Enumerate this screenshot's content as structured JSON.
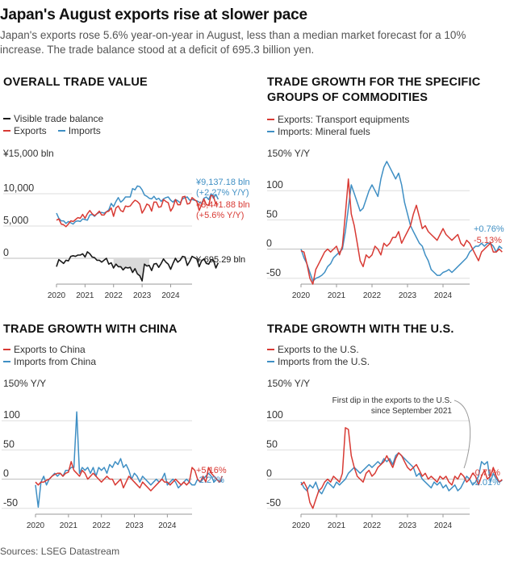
{
  "header": {
    "title": "Japan's August exports rise at slower pace",
    "subtitle": "Japan's exports rose 5.6% year-on-year in August, less than a median market forecast for a 10% increase. The trade balance stood at a deficit of 695.3 billion yen."
  },
  "source": "Sources: LSEG Datastream",
  "colors": {
    "exports": "#d83a34",
    "imports": "#3f8fc4",
    "balance": "#1a1a1a",
    "deficit_fill": "#d9d9d9",
    "grid": "#dedede"
  },
  "chart_data": [
    {
      "id": "overall",
      "type": "line",
      "title": "OVERALL TRADE VALUE",
      "unit": "¥15,000 bln",
      "legend": [
        "Visible trade balance",
        "Exports",
        "Imports"
      ],
      "x_ticks": [
        "2020",
        "2021",
        "2022",
        "2023",
        "2024"
      ],
      "y_ticks": [
        "10,000",
        "5,000",
        "0"
      ],
      "xlim": [
        2020.0,
        2024.75
      ],
      "ylim": [
        -4000,
        15000
      ],
      "y_tick_values": [
        10000,
        5000,
        0
      ],
      "series": [
        {
          "name": "Exports",
          "role": "exports",
          "x_start": 2020.0,
          "x_step": 0.08333,
          "values": [
            5900,
            6100,
            5300,
            5200,
            4900,
            5300,
            5800,
            5700,
            6000,
            6300,
            6200,
            6800,
            6200,
            6900,
            7400,
            6900,
            6600,
            6900,
            7300,
            6700,
            6700,
            7200,
            7300,
            7800,
            6500,
            7800,
            8100,
            7400,
            7200,
            8100,
            8000,
            8100,
            8600,
            9000,
            8800,
            8400,
            7000,
            7600,
            8400,
            8200,
            7300,
            8700,
            8700,
            7900,
            8000,
            9100,
            8800,
            8600,
            7300,
            7900,
            9100,
            8300,
            8300,
            9500,
            9600,
            8400,
            8500,
            9400,
            9100,
            8800,
            7400,
            8300,
            9200,
            8300,
            8200,
            9800,
            9600,
            8400,
            8400
          ]
        },
        {
          "name": "Imports",
          "role": "imports",
          "x_start": 2020.0,
          "x_step": 0.08333,
          "values": [
            7000,
            6200,
            5800,
            5800,
            5400,
            5700,
            5500,
            5300,
            5700,
            5800,
            5700,
            6100,
            6000,
            5900,
            6700,
            6800,
            6500,
            6900,
            7100,
            7100,
            7000,
            7200,
            7500,
            8500,
            8000,
            8800,
            9400,
            8700,
            9000,
            9500,
            9500,
            9500,
            10800,
            10600,
            11200,
            11100,
            10600,
            9800,
            9600,
            9300,
            9200,
            9600,
            9100,
            9300,
            8800,
            9200,
            9400,
            9500,
            9000,
            8700,
            9100,
            8900,
            8600,
            9200,
            9400,
            9500,
            9000,
            9100,
            9000,
            8900,
            8700,
            8500,
            9300,
            9500,
            9100,
            10000,
            9300,
            9900,
            9137
          ]
        },
        {
          "name": "Visible trade balance",
          "role": "balance",
          "x_start": 2020.0,
          "x_step": 0.08333,
          "values": [
            -1300,
            -200,
            -500,
            -800,
            -300,
            -400,
            300,
            400,
            300,
            500,
            500,
            700,
            200,
            1000,
            700,
            200,
            100,
            -300,
            -300,
            -600,
            -300,
            0,
            -900,
            -700,
            -1500,
            -900,
            -1300,
            -1300,
            -1800,
            -1400,
            -1500,
            -1400,
            -2200,
            -1600,
            -2400,
            -2700,
            -3500,
            -900,
            -1200,
            -1100,
            -1900,
            -900,
            -800,
            -1400,
            -800,
            -100,
            -600,
            -900,
            -1700,
            -800,
            0,
            -600,
            -300,
            300,
            200,
            -1100,
            -500,
            300,
            100,
            -100,
            -1300,
            -400,
            -100,
            -800,
            -900,
            -200,
            -300,
            -1500,
            -695
          ]
        },
        {
          "name": "Deficit area (2022-2023)",
          "role": "deficit-band"
        }
      ],
      "end_labels": [
        {
          "text": "¥9,137.18 bln",
          "role": "imports"
        },
        {
          "text": "(+2.27% Y/Y)",
          "role": "imports"
        },
        {
          "text": "¥8,441.88 bln",
          "role": "exports"
        },
        {
          "text": "(+5.6% Y/Y)",
          "role": "exports"
        },
        {
          "text": "¥-695.29 bln",
          "role": "balance"
        }
      ]
    },
    {
      "id": "commodities",
      "type": "line",
      "title": [
        "TRADE GROWTH FOR THE SPECIFIC",
        "GROUPS OF COMMODITIES"
      ],
      "unit": "150% Y/Y",
      "legend": [
        "Exports: Transport equipments",
        "Imports: Mineral fuels"
      ],
      "x_ticks": [
        "2020",
        "2021",
        "2022",
        "2023",
        "2024"
      ],
      "y_ticks": [
        "100",
        "50",
        "0",
        "-50"
      ],
      "xlim": [
        2020.0,
        2024.75
      ],
      "ylim": [
        -60,
        150
      ],
      "y_tick_values": [
        100,
        50,
        0,
        -50
      ],
      "series": [
        {
          "name": "Exports: Transport equipments",
          "role": "exports",
          "x_start": 2020.0,
          "x_step": 0.08333,
          "values": [
            -3,
            -5,
            -25,
            -50,
            -60,
            -35,
            -25,
            -15,
            -5,
            0,
            -5,
            0,
            5,
            -10,
            5,
            60,
            120,
            60,
            40,
            10,
            -20,
            -30,
            -10,
            -15,
            -10,
            5,
            0,
            -10,
            10,
            5,
            10,
            20,
            20,
            30,
            10,
            20,
            30,
            40,
            60,
            75,
            55,
            35,
            40,
            30,
            25,
            20,
            15,
            25,
            35,
            25,
            20,
            15,
            20,
            25,
            10,
            5,
            15,
            10,
            0,
            -10,
            -20,
            -5,
            0,
            5,
            10,
            -5,
            -5,
            0,
            -5
          ]
        },
        {
          "name": "Imports: Mineral fuels",
          "role": "imports",
          "x_start": 2020.0,
          "x_step": 0.08333,
          "values": [
            0,
            -15,
            -25,
            -40,
            -55,
            -50,
            -48,
            -45,
            -40,
            -30,
            -25,
            -15,
            -10,
            -5,
            0,
            30,
            70,
            110,
            95,
            80,
            65,
            70,
            85,
            100,
            110,
            100,
            90,
            120,
            140,
            150,
            140,
            130,
            120,
            130,
            110,
            80,
            60,
            40,
            30,
            20,
            10,
            5,
            -10,
            -20,
            -35,
            -40,
            -45,
            -45,
            -40,
            -38,
            -35,
            -40,
            -35,
            -30,
            -25,
            -20,
            -15,
            -5,
            0,
            5,
            5,
            10,
            5,
            10,
            10,
            5,
            -5,
            5,
            0.76
          ]
        }
      ],
      "end_labels": [
        {
          "text": "+0.76%",
          "role": "imports"
        },
        {
          "text": "-5.13%",
          "role": "exports"
        }
      ]
    },
    {
      "id": "china",
      "type": "line",
      "title": "TRADE GROWTH WITH CHINA",
      "unit": "150% Y/Y",
      "legend": [
        "Exports to China",
        "Imports from China"
      ],
      "x_ticks": [
        "2020",
        "2021",
        "2022",
        "2023",
        "2024"
      ],
      "y_ticks": [
        "100",
        "50",
        "0",
        "-50"
      ],
      "xlim": [
        2020.0,
        2024.75
      ],
      "ylim": [
        -60,
        150
      ],
      "y_tick_values": [
        100,
        50,
        0,
        -50
      ],
      "series": [
        {
          "name": "Exports to China",
          "role": "exports",
          "x_start": 2020.0,
          "x_step": 0.08333,
          "values": [
            -5,
            -10,
            -5,
            -5,
            -2,
            0,
            5,
            8,
            10,
            10,
            5,
            10,
            12,
            30,
            15,
            10,
            5,
            15,
            10,
            0,
            5,
            10,
            5,
            0,
            -5,
            0,
            5,
            0,
            0,
            -10,
            -5,
            0,
            -15,
            -5,
            5,
            0,
            -5,
            -10,
            -15,
            -5,
            -10,
            -15,
            -20,
            -15,
            -10,
            -5,
            0,
            -5,
            -5,
            -10,
            -5,
            0,
            -5,
            -10,
            -5,
            -10,
            -5,
            20,
            15,
            0,
            -5,
            5,
            -5,
            20,
            10,
            5,
            0,
            -5,
            5.16
          ]
        },
        {
          "name": "Imports from China",
          "role": "imports",
          "x_start": 2020.0,
          "x_step": 0.08333,
          "values": [
            -10,
            -48,
            -5,
            5,
            -10,
            0,
            5,
            10,
            5,
            10,
            5,
            15,
            15,
            20,
            20,
            115,
            10,
            20,
            15,
            20,
            10,
            20,
            5,
            20,
            15,
            20,
            10,
            25,
            20,
            30,
            25,
            35,
            20,
            25,
            15,
            0,
            10,
            5,
            -5,
            5,
            0,
            -5,
            -10,
            -5,
            0,
            -5,
            0,
            10,
            -10,
            -5,
            0,
            -5,
            -15,
            -10,
            -5,
            0,
            -5,
            -10,
            -10,
            0,
            -5,
            0,
            5,
            10,
            5,
            -5,
            0,
            -5,
            -2.27
          ]
        }
      ],
      "end_labels": [
        {
          "text": "+5.16%",
          "role": "exports"
        },
        {
          "text": "-2.27%",
          "role": "imports"
        }
      ]
    },
    {
      "id": "us",
      "type": "line",
      "title": "TRADE GROWTH WITH THE U.S.",
      "unit": "150% Y/Y",
      "legend": [
        "Exports to the U.S.",
        "Imports from the U.S."
      ],
      "annotation": [
        "First dip in the exports to the U.S.",
        "since September 2021"
      ],
      "x_ticks": [
        "2020",
        "2021",
        "2022",
        "2023",
        "2024"
      ],
      "y_ticks": [
        "100",
        "50",
        "0",
        "-50"
      ],
      "xlim": [
        2020.0,
        2024.75
      ],
      "ylim": [
        -60,
        150
      ],
      "y_tick_values": [
        100,
        50,
        0,
        -50
      ],
      "series": [
        {
          "name": "Exports to the U.S.",
          "role": "exports",
          "x_start": 2020.0,
          "x_step": 0.08333,
          "values": [
            -10,
            -5,
            -15,
            -40,
            -50,
            -35,
            -20,
            -15,
            -5,
            0,
            -5,
            5,
            0,
            -5,
            10,
            88,
            85,
            40,
            20,
            5,
            0,
            -5,
            10,
            15,
            5,
            10,
            20,
            25,
            30,
            40,
            30,
            20,
            35,
            45,
            40,
            30,
            20,
            15,
            20,
            25,
            15,
            5,
            10,
            0,
            5,
            0,
            -5,
            5,
            0,
            5,
            -5,
            -10,
            5,
            0,
            10,
            5,
            -5,
            0,
            10,
            5,
            -10,
            5,
            15,
            0,
            5,
            20,
            5,
            -5,
            -0.71
          ]
        },
        {
          "name": "Imports from the U.S.",
          "role": "imports",
          "x_start": 2020.0,
          "x_step": 0.08333,
          "values": [
            -5,
            -15,
            -20,
            -10,
            -15,
            -5,
            -20,
            -25,
            -15,
            -5,
            -10,
            -15,
            -5,
            -10,
            -5,
            0,
            10,
            15,
            20,
            15,
            10,
            15,
            20,
            25,
            20,
            25,
            30,
            25,
            35,
            30,
            35,
            25,
            40,
            45,
            40,
            35,
            30,
            25,
            20,
            5,
            10,
            0,
            -5,
            -10,
            -15,
            -5,
            -10,
            -5,
            -15,
            -10,
            -20,
            -15,
            -10,
            -20,
            -15,
            -5,
            5,
            0,
            -10,
            -5,
            5,
            30,
            25,
            30,
            -5,
            10,
            0,
            -5,
            -2.01
          ]
        }
      ],
      "end_labels": [
        {
          "text": "-0.71%",
          "role": "exports"
        },
        {
          "text": "-2.01%",
          "role": "imports"
        }
      ]
    }
  ]
}
